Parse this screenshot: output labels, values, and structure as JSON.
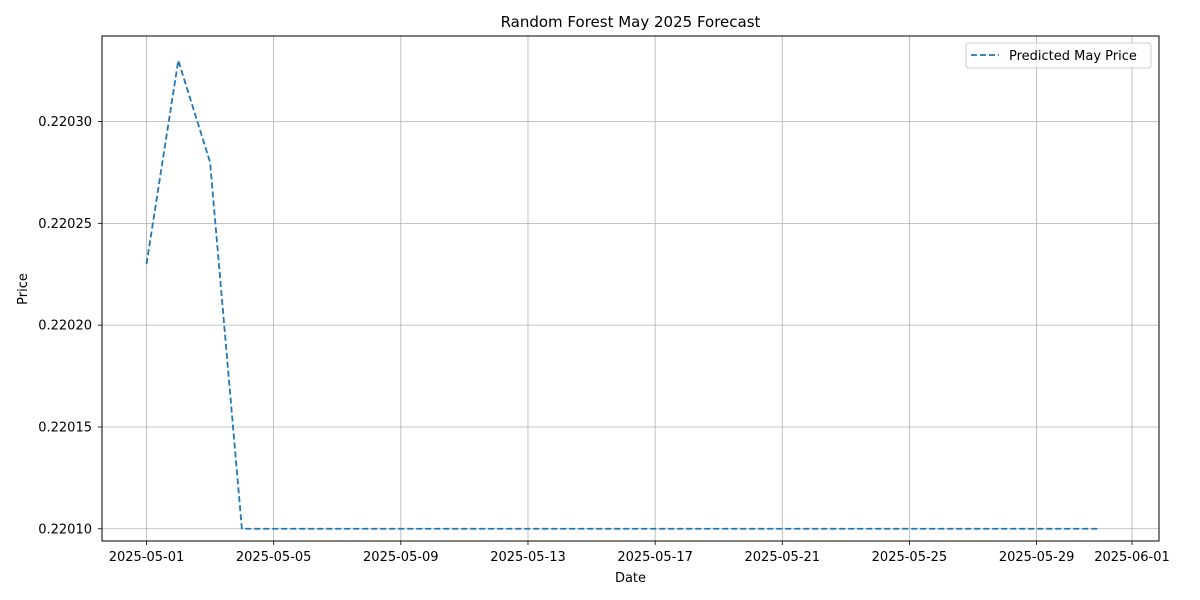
{
  "chart_data": {
    "type": "line",
    "title": "Random Forest May 2025 Forecast",
    "xlabel": "Date",
    "ylabel": "Price",
    "x_axis_type": "date",
    "xlim": [
      "2025-04-29",
      "2025-06-01"
    ],
    "ylim": [
      0.220094,
      0.220342
    ],
    "x_ticks": [
      "2025-05-01",
      "2025-05-05",
      "2025-05-09",
      "2025-05-13",
      "2025-05-17",
      "2025-05-21",
      "2025-05-25",
      "2025-05-29",
      "2025-06-01"
    ],
    "y_ticks": [
      0.2201,
      0.22015,
      0.2202,
      0.22025,
      0.2203
    ],
    "y_tick_labels": [
      "0.22010",
      "0.22015",
      "0.22020",
      "0.22025",
      "0.22030"
    ],
    "grid": true,
    "legend_position": "top-right",
    "series": [
      {
        "name": "Predicted May Price",
        "color": "#1f77b4",
        "line_style": "dashed",
        "x": [
          "2025-05-01",
          "2025-05-02",
          "2025-05-03",
          "2025-05-04",
          "2025-05-05",
          "2025-05-06",
          "2025-05-07",
          "2025-05-08",
          "2025-05-09",
          "2025-05-10",
          "2025-05-11",
          "2025-05-12",
          "2025-05-13",
          "2025-05-14",
          "2025-05-15",
          "2025-05-16",
          "2025-05-17",
          "2025-05-18",
          "2025-05-19",
          "2025-05-20",
          "2025-05-21",
          "2025-05-22",
          "2025-05-23",
          "2025-05-24",
          "2025-05-25",
          "2025-05-26",
          "2025-05-27",
          "2025-05-28",
          "2025-05-29",
          "2025-05-30",
          "2025-05-31"
        ],
        "y": [
          0.22023,
          0.22033,
          0.22028,
          0.2201,
          0.2201,
          0.2201,
          0.2201,
          0.2201,
          0.2201,
          0.2201,
          0.2201,
          0.2201,
          0.2201,
          0.2201,
          0.2201,
          0.2201,
          0.2201,
          0.2201,
          0.2201,
          0.2201,
          0.2201,
          0.2201,
          0.2201,
          0.2201,
          0.2201,
          0.2201,
          0.2201,
          0.2201,
          0.2201,
          0.2201,
          0.2201
        ]
      }
    ]
  }
}
